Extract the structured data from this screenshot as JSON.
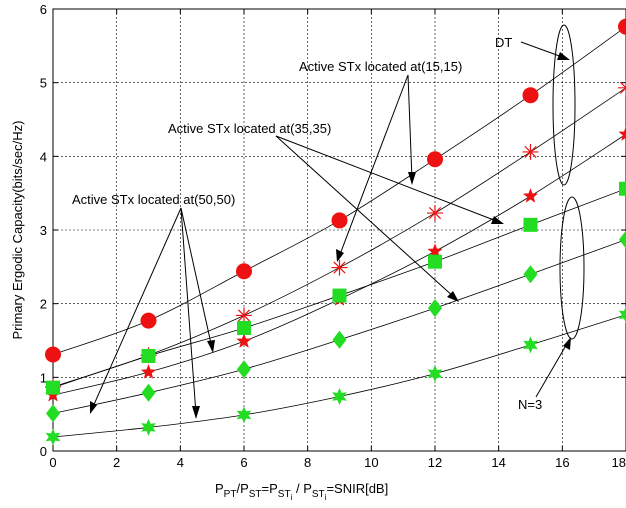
{
  "chart_data": {
    "type": "line",
    "xlabel": {
      "p1": "P",
      "p1_sub": "PT",
      "p2": "/P",
      "p2_sub": "ST",
      "p3": "=P",
      "p3_sub": "ST",
      "p4": " / P",
      "p4_sub": "ST",
      "p5": "=SNIR[dB]",
      "sub_sub": "i"
    },
    "ylabel": "Primary Ergodic Capacity(bits/sec/Hz)",
    "xlim": [
      0,
      18
    ],
    "ylim": [
      0,
      6
    ],
    "x_ticks": [
      0,
      2,
      4,
      6,
      8,
      10,
      12,
      14,
      16,
      18
    ],
    "y_ticks": [
      0,
      1,
      2,
      3,
      4,
      5,
      6
    ],
    "grid": true,
    "x": [
      0,
      3,
      6,
      9,
      12,
      15,
      18
    ],
    "series": [
      {
        "marker": "circle",
        "color": "#ee1111",
        "values": [
          1.31,
          1.77,
          2.44,
          3.13,
          3.96,
          4.83,
          5.76
        ]
      },
      {
        "marker": "asterisk",
        "color": "#ee1111",
        "values": [
          0.87,
          1.3,
          1.84,
          2.49,
          3.23,
          4.06,
          4.93
        ]
      },
      {
        "marker": "star",
        "color": "#ee1111",
        "values": [
          0.76,
          1.07,
          1.49,
          2.06,
          2.71,
          3.46,
          4.3
        ]
      },
      {
        "marker": "square",
        "color": "#22dd22",
        "values": [
          0.86,
          1.29,
          1.67,
          2.11,
          2.57,
          3.07,
          3.56
        ]
      },
      {
        "marker": "diamond",
        "color": "#22dd22",
        "values": [
          0.51,
          0.79,
          1.11,
          1.51,
          1.94,
          2.4,
          2.87
        ]
      },
      {
        "marker": "star",
        "color": "#22dd22",
        "values": [
          0.19,
          0.32,
          0.49,
          0.74,
          1.05,
          1.44,
          1.85
        ]
      }
    ],
    "annotations": {
      "a1515": "Active STx located at(15,15)",
      "a3535": "Active STx located at(35,35)",
      "a5050": "Active STx located at(50,50)",
      "dt": "DT",
      "n3": "N=3"
    }
  }
}
